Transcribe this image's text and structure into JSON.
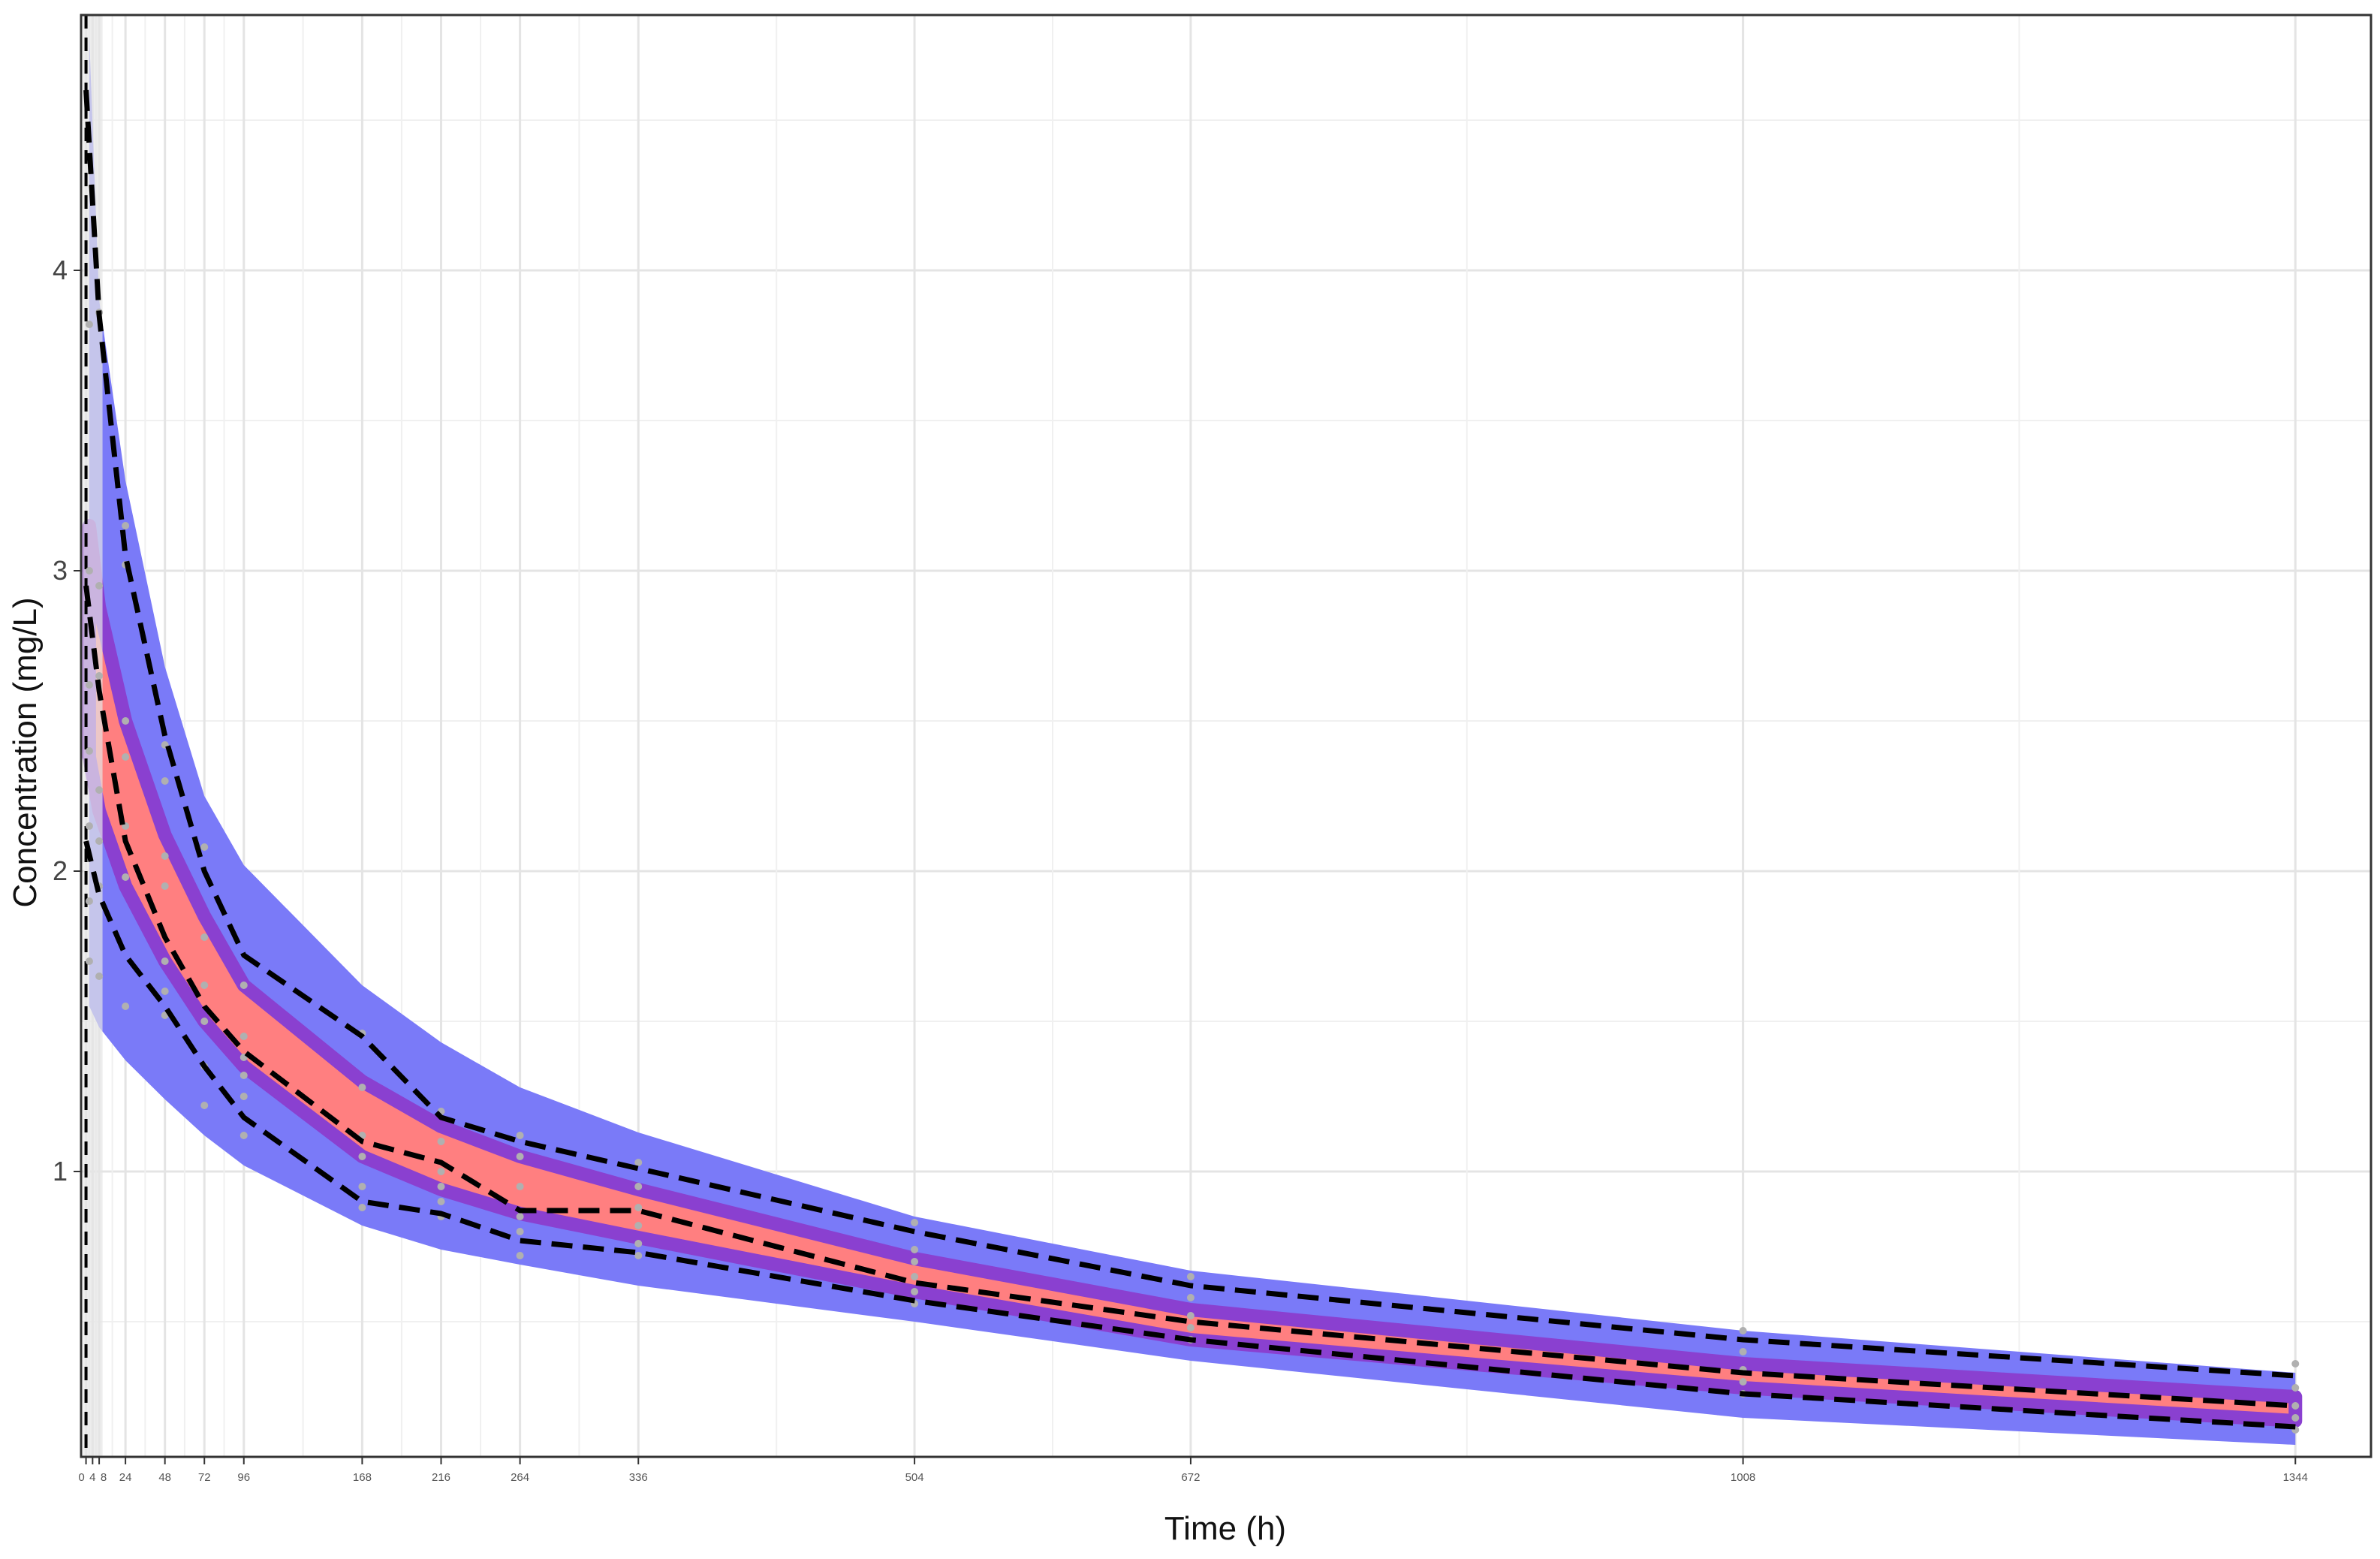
{
  "chart_data": {
    "type": "line",
    "title": "",
    "xlabel": "Time (h)",
    "ylabel": "Concentration (mg/L)",
    "xlim": [
      -3,
      1390
    ],
    "ylim": [
      0.05,
      4.85
    ],
    "x_ticks": [
      0,
      4,
      8,
      24,
      48,
      72,
      96,
      168,
      216,
      264,
      336,
      504,
      672,
      1008,
      1344
    ],
    "x_tick_labels": [
      "0",
      "4",
      "8",
      "24",
      "48",
      "72",
      "96",
      "168",
      "216",
      "264",
      "336",
      "504",
      "672",
      "1008",
      "1344"
    ],
    "y_ticks": [
      1,
      2,
      3,
      4
    ],
    "y_tick_labels": [
      "1",
      "2",
      "3",
      "4"
    ],
    "grid": true,
    "theme": "bw",
    "colors": {
      "outer_band": "#7A7AF8",
      "median_band": "#FF7F80",
      "band_edge": "#8A40D0",
      "observed_percentiles": "#000000",
      "observed_points": "#B0B0B0",
      "dosing_marker": "#000000"
    },
    "dosing_time": 0,
    "bands": {
      "x": [
        2,
        8,
        24,
        48,
        72,
        96,
        168,
        216,
        264,
        336,
        504,
        672,
        1008,
        1344
      ],
      "outer_high": [
        4.78,
        3.9,
        3.3,
        2.68,
        2.25,
        2.02,
        1.62,
        1.43,
        1.28,
        1.13,
        0.85,
        0.67,
        0.47,
        0.33
      ],
      "outer_low": [
        1.55,
        1.48,
        1.37,
        1.24,
        1.12,
        1.02,
        0.82,
        0.74,
        0.69,
        0.62,
        0.5,
        0.37,
        0.18,
        0.09
      ],
      "median_high": [
        3.15,
        2.88,
        2.5,
        2.12,
        1.85,
        1.62,
        1.3,
        1.15,
        1.05,
        0.94,
        0.71,
        0.54,
        0.36,
        0.25
      ],
      "median_low": [
        2.38,
        2.2,
        1.95,
        1.7,
        1.5,
        1.35,
        1.05,
        0.94,
        0.86,
        0.78,
        0.6,
        0.44,
        0.28,
        0.17
      ]
    },
    "series": [
      {
        "name": "",
        "x": [
          0,
          8,
          24,
          48,
          72,
          96,
          168,
          216,
          264,
          336,
          504,
          672,
          1008,
          1344
        ],
        "values": [
          4.6,
          3.85,
          3.05,
          2.45,
          2.0,
          1.72,
          1.45,
          1.18,
          1.1,
          1.01,
          0.8,
          0.62,
          0.44,
          0.32
        ]
      },
      {
        "name": "",
        "x": [
          0,
          8,
          24,
          48,
          72,
          96,
          168,
          216,
          264,
          336,
          504,
          672,
          1008,
          1344
        ],
        "values": [
          2.95,
          2.6,
          2.1,
          1.78,
          1.55,
          1.4,
          1.1,
          1.03,
          0.87,
          0.87,
          0.63,
          0.5,
          0.33,
          0.22
        ]
      },
      {
        "name": "",
        "x": [
          0,
          8,
          24,
          48,
          72,
          96,
          168,
          216,
          264,
          336,
          504,
          672,
          1008,
          1344
        ],
        "values": [
          2.1,
          1.92,
          1.72,
          1.55,
          1.35,
          1.18,
          0.9,
          0.86,
          0.77,
          0.73,
          0.57,
          0.44,
          0.26,
          0.15
        ]
      }
    ],
    "observations": {
      "x": [
        2,
        2,
        2,
        2,
        2,
        2,
        2,
        8,
        8,
        8,
        8,
        8,
        8,
        8,
        24,
        24,
        24,
        24,
        24,
        24,
        24,
        48,
        48,
        48,
        48,
        48,
        48,
        48,
        72,
        72,
        72,
        72,
        72,
        72,
        96,
        96,
        96,
        96,
        96,
        96,
        168,
        168,
        168,
        168,
        168,
        168,
        216,
        216,
        216,
        216,
        216,
        216,
        264,
        264,
        264,
        264,
        264,
        264,
        336,
        336,
        336,
        336,
        336,
        336,
        504,
        504,
        504,
        504,
        504,
        504,
        672,
        672,
        672,
        672,
        672,
        1008,
        1008,
        1008,
        1008,
        1008,
        1344,
        1344,
        1344,
        1344,
        1344
      ],
      "y": [
        3.82,
        3.0,
        2.62,
        2.4,
        2.15,
        1.9,
        1.7,
        3.86,
        2.95,
        2.65,
        2.27,
        2.1,
        1.95,
        1.65,
        3.15,
        3.02,
        2.5,
        2.38,
        2.15,
        1.98,
        1.55,
        2.42,
        2.3,
        2.05,
        1.95,
        1.7,
        1.6,
        1.52,
        2.08,
        1.78,
        1.62,
        1.5,
        1.35,
        1.22,
        1.62,
        1.45,
        1.38,
        1.32,
        1.25,
        1.12,
        1.46,
        1.28,
        1.12,
        1.05,
        0.95,
        0.88,
        1.2,
        1.1,
        1.0,
        0.95,
        0.9,
        0.85,
        1.12,
        1.05,
        0.95,
        0.85,
        0.8,
        0.72,
        1.03,
        0.95,
        0.88,
        0.82,
        0.76,
        0.72,
        0.83,
        0.74,
        0.7,
        0.65,
        0.6,
        0.56,
        0.65,
        0.58,
        0.52,
        0.48,
        0.44,
        0.47,
        0.4,
        0.34,
        0.3,
        0.26,
        0.36,
        0.28,
        0.22,
        0.18,
        0.14
      ]
    }
  }
}
